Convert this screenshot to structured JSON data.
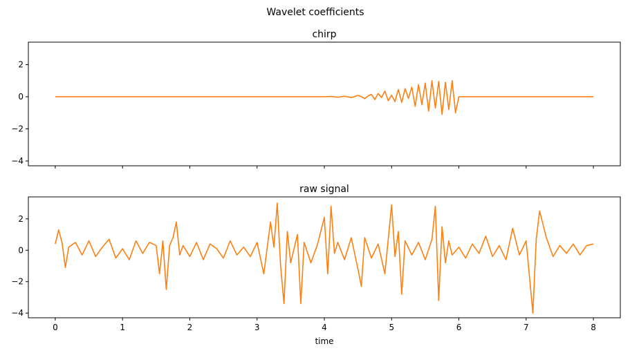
{
  "figure": {
    "suptitle": "Wavelet coefficients"
  },
  "chart_data": [
    {
      "type": "line",
      "title": "chirp",
      "xlabel": "",
      "ylabel": "",
      "xlim": [
        -0.4,
        8.4
      ],
      "ylim": [
        -4.3,
        3.4
      ],
      "yticks": [
        -4,
        -2,
        0,
        2
      ],
      "ytick_labels": [
        "−4",
        "−2",
        "0",
        "2"
      ],
      "xticks": [
        0,
        1,
        2,
        3,
        4,
        5,
        6,
        7,
        8
      ],
      "xtick_labels_shown": false,
      "grid": false,
      "series": [
        {
          "color": "#ff7f0e",
          "x": [
            0,
            0.5,
            1,
            1.5,
            2,
            2.5,
            3,
            3.5,
            4,
            4.1,
            4.2,
            4.3,
            4.4,
            4.5,
            4.55,
            4.6,
            4.65,
            4.7,
            4.75,
            4.8,
            4.85,
            4.9,
            4.95,
            5.0,
            5.05,
            5.1,
            5.15,
            5.2,
            5.25,
            5.3,
            5.35,
            5.4,
            5.45,
            5.5,
            5.55,
            5.6,
            5.65,
            5.7,
            5.75,
            5.8,
            5.85,
            5.9,
            5.95,
            6.0,
            6.05,
            6.5,
            7,
            7.5,
            8
          ],
          "y": [
            0,
            0,
            0,
            0,
            0,
            0,
            0,
            0,
            0,
            0.02,
            -0.03,
            0.03,
            -0.05,
            0.08,
            0.0,
            -0.12,
            0.05,
            0.15,
            -0.18,
            0.2,
            -0.05,
            0.35,
            -0.25,
            0.1,
            -0.3,
            0.45,
            -0.35,
            0.5,
            -0.1,
            0.6,
            -0.6,
            0.75,
            -0.5,
            0.85,
            -0.9,
            1.0,
            -0.7,
            0.95,
            -1.1,
            0.9,
            -0.8,
            1.0,
            -1.0,
            0.0,
            0,
            0,
            0,
            0,
            0
          ]
        }
      ]
    },
    {
      "type": "line",
      "title": "raw signal",
      "xlabel": "time",
      "ylabel": "",
      "xlim": [
        -0.4,
        8.4
      ],
      "ylim": [
        -4.3,
        3.4
      ],
      "yticks": [
        -4,
        -2,
        0,
        2
      ],
      "ytick_labels": [
        "−4",
        "−2",
        "0",
        "2"
      ],
      "xticks": [
        0,
        1,
        2,
        3,
        4,
        5,
        6,
        7,
        8
      ],
      "xtick_labels": [
        "0",
        "1",
        "2",
        "3",
        "4",
        "5",
        "6",
        "7",
        "8"
      ],
      "grid": false,
      "series": [
        {
          "color": "#ff7f0e",
          "x": [
            0,
            0.05,
            0.1,
            0.15,
            0.2,
            0.3,
            0.4,
            0.5,
            0.6,
            0.7,
            0.8,
            0.9,
            1.0,
            1.1,
            1.2,
            1.3,
            1.4,
            1.5,
            1.55,
            1.6,
            1.65,
            1.7,
            1.75,
            1.8,
            1.85,
            1.9,
            2.0,
            2.1,
            2.2,
            2.3,
            2.4,
            2.5,
            2.6,
            2.7,
            2.8,
            2.9,
            3.0,
            3.1,
            3.2,
            3.25,
            3.3,
            3.35,
            3.4,
            3.45,
            3.5,
            3.6,
            3.65,
            3.7,
            3.8,
            3.9,
            4.0,
            4.05,
            4.1,
            4.15,
            4.2,
            4.3,
            4.4,
            4.5,
            4.55,
            4.6,
            4.7,
            4.8,
            4.9,
            5.0,
            5.05,
            5.1,
            5.15,
            5.2,
            5.3,
            5.4,
            5.5,
            5.6,
            5.65,
            5.7,
            5.75,
            5.8,
            5.85,
            5.9,
            6.0,
            6.1,
            6.2,
            6.3,
            6.4,
            6.5,
            6.6,
            6.7,
            6.8,
            6.9,
            7.0,
            7.05,
            7.1,
            7.15,
            7.2,
            7.3,
            7.4,
            7.5,
            7.6,
            7.7,
            7.8,
            7.9,
            8.0
          ],
          "y": [
            0.4,
            1.3,
            0.5,
            -1.1,
            0.2,
            0.5,
            -0.3,
            0.6,
            -0.4,
            0.2,
            0.7,
            -0.5,
            0.1,
            -0.6,
            0.6,
            -0.2,
            0.5,
            0.3,
            -1.5,
            0.6,
            -2.5,
            0.3,
            0.8,
            1.8,
            -0.3,
            0.3,
            -0.4,
            0.5,
            -0.6,
            0.4,
            0.1,
            -0.5,
            0.6,
            -0.3,
            0.2,
            -0.4,
            0.5,
            -1.5,
            1.8,
            0.2,
            3.0,
            -1.0,
            -3.4,
            1.2,
            -0.8,
            1.0,
            -3.4,
            0.5,
            -0.8,
            0.4,
            2.1,
            -1.5,
            2.8,
            -0.2,
            0.5,
            -0.6,
            0.8,
            -1.2,
            -2.3,
            0.8,
            -0.5,
            0.4,
            -1.5,
            2.9,
            -0.4,
            1.2,
            -2.8,
            0.6,
            -0.3,
            0.5,
            -0.6,
            0.7,
            2.8,
            -3.2,
            1.5,
            -0.8,
            0.6,
            -0.3,
            0.2,
            -0.5,
            0.4,
            -0.2,
            0.9,
            -0.4,
            0.3,
            -0.6,
            1.4,
            -0.3,
            0.6,
            -1.7,
            -4.0,
            0.7,
            2.5,
            0.8,
            -0.4,
            0.3,
            -0.2,
            0.4,
            -0.3,
            0.3,
            0.4
          ]
        }
      ]
    }
  ]
}
